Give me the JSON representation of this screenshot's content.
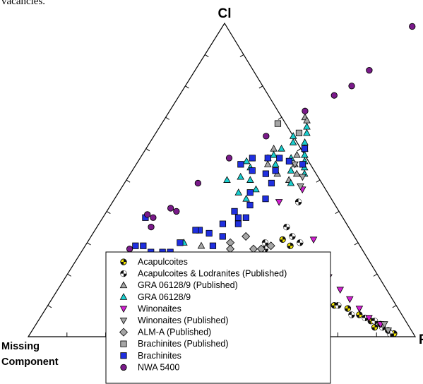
{
  "top_fragment": "vacancies.",
  "chart_data": {
    "type": "scatter",
    "subtype": "ternary",
    "vertices": {
      "top": "Cl",
      "left": "Missing Component",
      "right": "F"
    },
    "legend_position": "lower-center",
    "grid": false,
    "series": [
      {
        "name": "Acapulcoites",
        "marker": "circle-quartered",
        "color": "#f2e600",
        "points": [
          [
            0.54,
            0.26
          ],
          [
            0.57,
            0.22
          ],
          [
            0.59,
            0.2
          ],
          [
            0.62,
            0.18
          ],
          [
            0.66,
            0.15
          ],
          [
            0.7,
            0.13
          ],
          [
            0.74,
            0.1
          ],
          [
            0.78,
            0.09
          ],
          [
            0.82,
            0.07
          ],
          [
            0.86,
            0.05
          ],
          [
            0.89,
            0.04
          ],
          [
            0.92,
            0.02
          ],
          [
            0.94,
            0.01
          ],
          [
            0.5,
            0.31
          ],
          [
            0.53,
            0.29
          ],
          [
            0.88,
            0.03
          ]
        ]
      },
      {
        "name": "Acapulcoites & Lodranites (Published)",
        "marker": "circle-quartered",
        "color": "#111111",
        "points": [
          [
            0.48,
            0.43
          ],
          [
            0.49,
            0.35
          ],
          [
            0.52,
            0.32
          ],
          [
            0.55,
            0.3
          ],
          [
            0.58,
            0.21
          ],
          [
            0.63,
            0.17
          ],
          [
            0.67,
            0.14
          ],
          [
            0.71,
            0.12
          ],
          [
            0.75,
            0.1
          ],
          [
            0.8,
            0.07
          ],
          [
            0.84,
            0.06
          ],
          [
            0.87,
            0.05
          ],
          [
            0.9,
            0.03
          ],
          [
            0.93,
            0.01
          ],
          [
            0.46,
            0.3
          ],
          [
            0.47,
            0.28
          ]
        ]
      },
      {
        "name": "GRA 06128/9 (Published)",
        "marker": "triangle-up",
        "color": "#a6a6a6",
        "points": [
          [
            0.36,
            0.7
          ],
          [
            0.37,
            0.69
          ],
          [
            0.4,
            0.58
          ],
          [
            0.41,
            0.55
          ],
          [
            0.34,
            0.55
          ],
          [
            0.38,
            0.52
          ],
          [
            0.42,
            0.5
          ],
          [
            0.33,
            0.6
          ],
          [
            0.43,
            0.52
          ],
          [
            0.3,
            0.29
          ]
        ]
      },
      {
        "name": "GRA 06128/9",
        "marker": "triangle-up",
        "color": "#19cfcf",
        "points": [
          [
            0.38,
            0.67
          ],
          [
            0.39,
            0.65
          ],
          [
            0.4,
            0.62
          ],
          [
            0.41,
            0.6
          ],
          [
            0.42,
            0.58
          ],
          [
            0.43,
            0.56
          ],
          [
            0.44,
            0.54
          ],
          [
            0.45,
            0.52
          ],
          [
            0.36,
            0.64
          ],
          [
            0.37,
            0.62
          ],
          [
            0.35,
            0.6
          ],
          [
            0.34,
            0.58
          ],
          [
            0.33,
            0.57
          ],
          [
            0.36,
            0.55
          ],
          [
            0.39,
            0.57
          ],
          [
            0.3,
            0.54
          ],
          [
            0.28,
            0.56
          ],
          [
            0.32,
            0.5
          ],
          [
            0.35,
            0.47
          ],
          [
            0.34,
            0.44
          ],
          [
            0.31,
            0.46
          ],
          [
            0.29,
            0.51
          ],
          [
            0.26,
            0.5
          ],
          [
            0.25,
            0.3
          ],
          [
            0.41,
            0.53
          ],
          [
            0.43,
            0.49
          ]
        ]
      },
      {
        "name": "Winonaites",
        "marker": "triangle-down",
        "color": "#d21ed2",
        "points": [
          [
            0.47,
            0.47
          ],
          [
            0.43,
            0.43
          ],
          [
            0.58,
            0.31
          ],
          [
            0.65,
            0.22
          ],
          [
            0.68,
            0.19
          ],
          [
            0.73,
            0.15
          ],
          [
            0.77,
            0.12
          ],
          [
            0.81,
            0.09
          ],
          [
            0.85,
            0.06
          ],
          [
            0.89,
            0.04
          ]
        ]
      },
      {
        "name": "Winonaites (Published)",
        "marker": "triangle-down",
        "color": "#a6a6a6",
        "points": [
          [
            0.41,
            0.55
          ],
          [
            0.45,
            0.51
          ],
          [
            0.9,
            0.04
          ],
          [
            0.92,
            0.02
          ],
          [
            0.46,
            0.48
          ]
        ]
      },
      {
        "name": "ALM-A (Published)",
        "marker": "diamond",
        "color": "#a6a6a6",
        "points": [
          [
            0.37,
            0.3
          ],
          [
            0.38,
            0.28
          ],
          [
            0.44,
            0.28
          ],
          [
            0.46,
            0.28
          ],
          [
            0.48,
            0.29
          ],
          [
            0.4,
            0.32
          ]
        ]
      },
      {
        "name": "Brachinites (Published)",
        "marker": "square",
        "color": "#a6a6a6",
        "points": [
          [
            0.3,
            0.68
          ],
          [
            0.37,
            0.65
          ]
        ]
      },
      {
        "name": "Brachinites",
        "marker": "square",
        "color": "#1f2fe0",
        "points": [
          [
            0.41,
            0.6
          ],
          [
            0.43,
            0.55
          ],
          [
            0.39,
            0.56
          ],
          [
            0.36,
            0.57
          ],
          [
            0.33,
            0.57
          ],
          [
            0.29,
            0.57
          ],
          [
            0.27,
            0.55
          ],
          [
            0.31,
            0.53
          ],
          [
            0.35,
            0.52
          ],
          [
            0.37,
            0.53
          ],
          [
            0.38,
            0.49
          ],
          [
            0.39,
            0.44
          ],
          [
            0.36,
            0.42
          ],
          [
            0.33,
            0.4
          ],
          [
            0.35,
            0.38
          ],
          [
            0.37,
            0.38
          ],
          [
            0.36,
            0.36
          ],
          [
            0.3,
            0.33
          ],
          [
            0.27,
            0.34
          ],
          [
            0.24,
            0.3
          ],
          [
            0.23,
            0.27
          ],
          [
            0.21,
            0.24
          ],
          [
            0.19,
            0.23
          ],
          [
            0.17,
            0.25
          ],
          [
            0.15,
            0.29
          ],
          [
            0.15,
            0.23
          ],
          [
            0.16,
            0.19
          ],
          [
            0.15,
            0.2
          ],
          [
            0.17,
            0.21
          ],
          [
            0.18,
            0.27
          ],
          [
            0.2,
            0.21
          ],
          [
            0.21,
            0.27
          ],
          [
            0.19,
            0.15
          ],
          [
            0.11,
            0.38
          ],
          [
            0.13,
            0.29
          ],
          [
            0.34,
            0.32
          ],
          [
            0.33,
            0.29
          ],
          [
            0.26,
            0.34
          ],
          [
            0.32,
            0.36
          ],
          [
            0.34,
            0.46
          ]
        ]
      },
      {
        "name": "NWA 5400",
        "marker": "circle",
        "color": "#7a1a8a",
        "points": [
          [
            0.49,
            0.99
          ],
          [
            0.45,
            0.85
          ],
          [
            0.4,
            0.77
          ],
          [
            0.43,
            0.8
          ],
          [
            0.35,
            0.72
          ],
          [
            0.29,
            0.64
          ],
          [
            0.23,
            0.57
          ],
          [
            0.19,
            0.49
          ],
          [
            0.16,
            0.41
          ],
          [
            0.14,
            0.35
          ],
          [
            0.12,
            0.28
          ],
          [
            0.11,
            0.39
          ],
          [
            0.13,
            0.38
          ],
          [
            0.18,
            0.4
          ]
        ]
      }
    ]
  }
}
